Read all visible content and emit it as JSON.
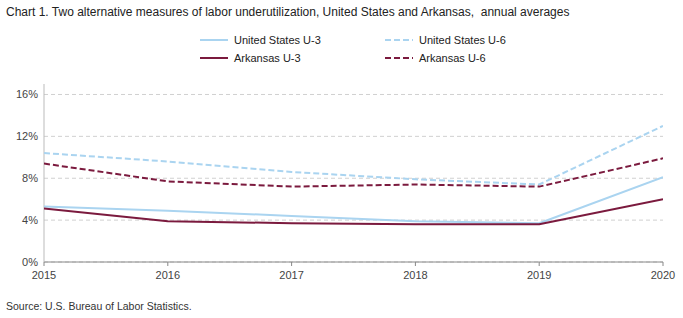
{
  "chart_data": {
    "type": "line",
    "title": "Chart 1. Two alternative measures of labor underutilization, United States and Arkansas,  annual averages",
    "annotations": [
      "Source: U.S. Bureau of Labor Statistics."
    ],
    "x": [
      2015,
      2016,
      2017,
      2018,
      2019,
      2020
    ],
    "xlim": [
      2015,
      2020
    ],
    "xticks": [
      2015,
      2016,
      2017,
      2018,
      2019,
      2020
    ],
    "ylim": [
      0,
      17
    ],
    "yticks": [
      {
        "value": 0,
        "label": "0%"
      },
      {
        "value": 4,
        "label": "4%"
      },
      {
        "value": 8,
        "label": "8%"
      },
      {
        "value": 12,
        "label": "12%"
      },
      {
        "value": 16,
        "label": "16%"
      }
    ],
    "grid": "y",
    "legend": "top",
    "series": [
      {
        "name": "United States U-3",
        "color": "#aad4f0",
        "line_style": "solid",
        "values": [
          5.3,
          4.9,
          4.4,
          3.9,
          3.7,
          8.1
        ]
      },
      {
        "name": "United States U-6",
        "color": "#aad4f0",
        "line_style": "dashed",
        "values": [
          10.4,
          9.6,
          8.6,
          7.9,
          7.4,
          13.0
        ]
      },
      {
        "name": "Arkansas U-3",
        "color": "#7b1a3e",
        "line_style": "solid",
        "values": [
          5.1,
          3.9,
          3.7,
          3.6,
          3.6,
          6.0
        ]
      },
      {
        "name": "Arkansas U-6",
        "color": "#7b1a3e",
        "line_style": "dashed",
        "values": [
          9.4,
          7.7,
          7.2,
          7.4,
          7.2,
          9.9
        ]
      }
    ]
  }
}
